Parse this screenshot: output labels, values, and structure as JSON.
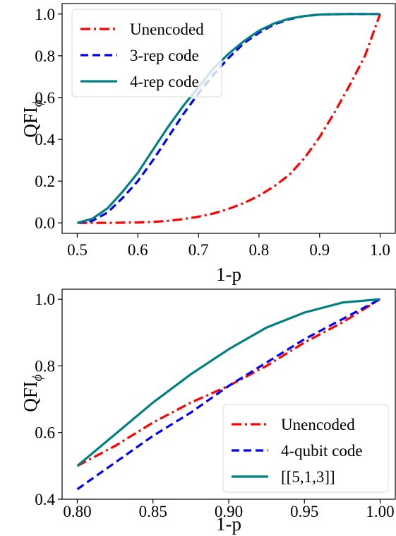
{
  "chart_data": [
    {
      "type": "line",
      "xlabel": "1-p",
      "ylabel": "QFI",
      "ylabel_sub": "ϕ",
      "xlim": [
        0.475,
        1.025
      ],
      "ylim": [
        -0.05,
        1.05
      ],
      "xticks": [
        0.5,
        0.6,
        0.7,
        0.8,
        0.9,
        1.0
      ],
      "xtick_labels": [
        "0.5",
        "0.6",
        "0.7",
        "0.8",
        "0.9",
        "1.0"
      ],
      "yticks": [
        0.0,
        0.2,
        0.4,
        0.6,
        0.8,
        1.0
      ],
      "ytick_labels": [
        "0.0",
        "0.2",
        "0.4",
        "0.6",
        "0.8",
        "1.0"
      ],
      "legend_position": "upper-left",
      "x": [
        0.5,
        0.525,
        0.55,
        0.575,
        0.6,
        0.625,
        0.65,
        0.675,
        0.7,
        0.725,
        0.75,
        0.775,
        0.8,
        0.825,
        0.85,
        0.875,
        0.9,
        0.925,
        0.95,
        0.975,
        1.0
      ],
      "series": [
        {
          "name": "Unencoded",
          "color": "#ff0000",
          "dash": "dashdot",
          "values": [
            0.0,
            0.0,
            0.0,
            0.001,
            0.002,
            0.005,
            0.01,
            0.018,
            0.03,
            0.045,
            0.067,
            0.095,
            0.13,
            0.175,
            0.23,
            0.31,
            0.41,
            0.53,
            0.66,
            0.8,
            1.0
          ]
        },
        {
          "name": "3-rep code",
          "color": "#0000ff",
          "dash": "dashed",
          "values": [
            0.0,
            0.01,
            0.05,
            0.12,
            0.2,
            0.3,
            0.41,
            0.52,
            0.62,
            0.71,
            0.79,
            0.86,
            0.91,
            0.95,
            0.975,
            0.99,
            0.997,
            0.999,
            1.0,
            1.0,
            1.0
          ]
        },
        {
          "name": "4-rep code",
          "color": "#008080",
          "dash": "solid",
          "values": [
            0.0,
            0.02,
            0.07,
            0.15,
            0.24,
            0.35,
            0.46,
            0.56,
            0.65,
            0.74,
            0.81,
            0.87,
            0.92,
            0.955,
            0.978,
            0.99,
            0.997,
            0.999,
            1.0,
            1.0,
            1.0
          ]
        }
      ]
    },
    {
      "type": "line",
      "xlabel": "1-p",
      "ylabel": "QFI",
      "ylabel_sub": "ϕ",
      "xlim": [
        0.79,
        1.01
      ],
      "ylim": [
        0.4,
        1.03
      ],
      "xticks": [
        0.8,
        0.85,
        0.9,
        0.95,
        1.0
      ],
      "xtick_labels": [
        "0.80",
        "0.85",
        "0.90",
        "0.95",
        "1.00"
      ],
      "yticks": [
        0.4,
        0.6,
        0.8,
        1.0
      ],
      "ytick_labels": [
        "0.4",
        "0.6",
        "0.8",
        "1.0"
      ],
      "legend_position": "lower-right",
      "x": [
        0.8,
        0.825,
        0.85,
        0.875,
        0.9,
        0.925,
        0.95,
        0.975,
        1.0
      ],
      "series": [
        {
          "name": "Unencoded",
          "color": "#ff0000",
          "dash": "dashdot",
          "values": [
            0.5,
            0.56,
            0.63,
            0.69,
            0.74,
            0.8,
            0.87,
            0.93,
            1.0
          ]
        },
        {
          "name": "4-qubit code",
          "color": "#0000ff",
          "dash": "dashed",
          "values": [
            0.43,
            0.51,
            0.59,
            0.66,
            0.74,
            0.81,
            0.88,
            0.94,
            1.0
          ]
        },
        {
          "name": "[[5,1,3]]",
          "color": "#008080",
          "dash": "solid",
          "values": [
            0.5,
            0.595,
            0.69,
            0.775,
            0.85,
            0.915,
            0.96,
            0.99,
            1.0
          ]
        }
      ]
    }
  ]
}
